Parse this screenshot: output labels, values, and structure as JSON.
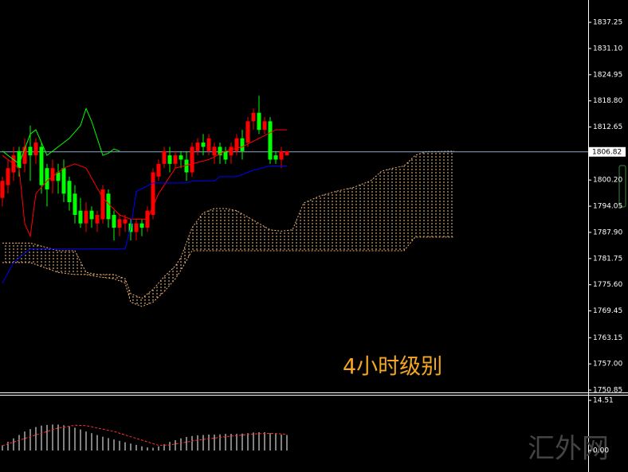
{
  "chart_data": [
    {
      "type": "candlestick",
      "ylim": [
        1750.3,
        1842.5
      ],
      "yticks": [
        1837.25,
        {
          "value": 1831.1,
          "label": "1831.10"
        },
        1824.95,
        {
          "value": 1818.8,
          "label": "1818.80"
        },
        1812.65,
        {
          "value": 1800.2,
          "label": "1800.20"
        },
        1794.05,
        {
          "value": 1787.9,
          "label": "1787.90"
        },
        1781.75,
        {
          "value": 1775.6,
          "label": "1775.60"
        },
        1769.45,
        1763.15,
        {
          "value": 1757,
          "label": "1757.00"
        },
        1750.85
      ],
      "current_price": 1806.82,
      "up_color": "#ff0000",
      "down_color": "#00ff00",
      "open": [
        1796,
        1799,
        1802,
        1807,
        1804,
        1808,
        1806,
        1808,
        1803,
        1800,
        1802,
        1803,
        1800,
        1797,
        1793,
        1790,
        1793,
        1790,
        1791,
        1797,
        1792,
        1789,
        1790,
        1790,
        1788,
        1790,
        1789,
        1792,
        1801,
        1804,
        1806,
        1804,
        1806,
        1805,
        1802,
        1807,
        1809,
        1807,
        1806,
        1808,
        1807,
        1806,
        1807,
        1810,
        1809,
        1814,
        1816,
        1812,
        1814,
        1806,
        1805,
        1806
      ],
      "high": [
        1801,
        1805,
        1808,
        1808,
        1810,
        1813,
        1810,
        1809,
        1804,
        1805,
        1804,
        1805,
        1801,
        1799,
        1796,
        1795,
        1794,
        1793,
        1799,
        1798,
        1793,
        1792,
        1792,
        1791,
        1791,
        1791,
        1794,
        1803,
        1805,
        1808,
        1808,
        1807,
        1807,
        1807,
        1809,
        1810,
        1811,
        1811,
        1809,
        1809,
        1808,
        1809,
        1811,
        1812,
        1815,
        1817,
        1820,
        1815,
        1815,
        1807,
        1808,
        1807
      ],
      "low": [
        1794,
        1797,
        1800,
        1801,
        1802,
        1800,
        1804,
        1797,
        1794,
        1797,
        1797,
        1795,
        1793,
        1790,
        1789,
        1788,
        1789,
        1788,
        1790,
        1789,
        1786,
        1787,
        1788,
        1786,
        1786,
        1787,
        1788,
        1791,
        1800,
        1803,
        1802,
        1803,
        1803,
        1800,
        1801,
        1806,
        1806,
        1806,
        1804,
        1804,
        1804,
        1804,
        1806,
        1805,
        1808,
        1812,
        1811,
        1811,
        1804,
        1804,
        1803,
        1806
      ],
      "close": [
        1800,
        1803,
        1806,
        1803,
        1808,
        1806,
        1809,
        1799,
        1798,
        1803,
        1800,
        1797,
        1795,
        1792,
        1790,
        1793,
        1791,
        1792,
        1798,
        1791,
        1789,
        1791,
        1791,
        1788,
        1790,
        1789,
        1793,
        1802,
        1804,
        1807,
        1804,
        1806,
        1805,
        1802,
        1808,
        1809,
        1808,
        1810,
        1808,
        1806,
        1805,
        1808,
        1810,
        1807,
        1814,
        1816,
        1812,
        1814,
        1805,
        1805,
        1807,
        1807
      ],
      "lines": [
        {
          "color": "#ff0000",
          "x": [
            0,
            3,
            4,
            5,
            6,
            8,
            11,
            13,
            15,
            18,
            21,
            23,
            26,
            28,
            31,
            34,
            37,
            40,
            43,
            46,
            49,
            51
          ],
          "values": [
            1806,
            1803,
            1790,
            1787,
            1797,
            1800,
            1803,
            1804,
            1803,
            1796,
            1792,
            1791,
            1791,
            1797,
            1803,
            1804,
            1805,
            1807,
            1808,
            1810,
            1812,
            1812
          ]
        },
        {
          "color": "#0000ff",
          "x": [
            0,
            2,
            4,
            5,
            22,
            23,
            24,
            27,
            33,
            34,
            38,
            39,
            42,
            45,
            48,
            51
          ],
          "values": [
            1776,
            1780.8,
            1783,
            1784,
            1784,
            1789,
            1797.5,
            1799.5,
            1799.5,
            1800,
            1800,
            1801,
            1801,
            1802.5,
            1803.5,
            1803.5
          ]
        },
        {
          "color": "#00ff00",
          "x": [
            0,
            3,
            5,
            6,
            8,
            10,
            12,
            14,
            15,
            16,
            17,
            18,
            19,
            20,
            21
          ],
          "values": [
            1807,
            1804,
            1811,
            1812,
            1806,
            1808,
            1810,
            1813,
            1817,
            1814,
            1810,
            1806,
            1806.5,
            1807.5,
            1807
          ]
        }
      ],
      "cloud": {
        "color": "#f0b070",
        "x": [
          0,
          5,
          10,
          13,
          15,
          17,
          20,
          22,
          23,
          25,
          27,
          29,
          31,
          32,
          34,
          36,
          38,
          40,
          42,
          44,
          46,
          48,
          50,
          52,
          54,
          57,
          60,
          63,
          66,
          68,
          70,
          72,
          74,
          76,
          78,
          81
        ],
        "span_a": [
          1785.4,
          1785.4,
          1783.6,
          1783.6,
          1778.5,
          1778,
          1778,
          1777,
          1773.5,
          1772.4,
          1774.5,
          1777.5,
          1780,
          1782,
          1789,
          1792.5,
          1793.5,
          1793.5,
          1793,
          1791.5,
          1790,
          1788.5,
          1788.2,
          1788.5,
          1794.8,
          1796.5,
          1797.6,
          1798.5,
          1800,
          1802.3,
          1803,
          1803.5,
          1806,
          1806.9,
          1806.9,
          1807
        ],
        "span_b": [
          1780.8,
          1780.8,
          1778.5,
          1778,
          1778,
          1777.5,
          1777,
          1776,
          1771.5,
          1770.5,
          1771.5,
          1774,
          1777,
          1779,
          1783.6,
          1783.6,
          1783.6,
          1783.6,
          1783.6,
          1783.6,
          1783.6,
          1783.6,
          1783.6,
          1783.6,
          1783.6,
          1783.6,
          1783.6,
          1783.6,
          1783.6,
          1783.6,
          1783.6,
          1783.6,
          1786.8,
          1786.8,
          1786.8,
          1786.8
        ]
      },
      "annotation": "4小时级别",
      "annotation_color": "#f5a623",
      "watermark": "汇外网"
    },
    {
      "type": "macd",
      "ylim": [
        -6.22,
        15.89
      ],
      "yticks": [
        14.51,
        {
          "value": 0,
          "label": "0.00"
        }
      ],
      "histogram": {
        "color": "#ffffff",
        "values": [
          1.5,
          2.5,
          3.5,
          4.5,
          5.5,
          6.2,
          6.8,
          7.2,
          7.4,
          7.5,
          7.5,
          7.3,
          7,
          6.6,
          6.1,
          5.5,
          5,
          4.5,
          4,
          3.6,
          3.2,
          2.8,
          2.4,
          2,
          1.6,
          1.2,
          0.9,
          0.8,
          1.2,
          1.8,
          2.5,
          3,
          3.5,
          3.9,
          4.2,
          4.4,
          4.5,
          4.6,
          4.6,
          4.7,
          4.8,
          4.8,
          4.8,
          4.9,
          5,
          5.2,
          5.3,
          5.3,
          5,
          4.8,
          4.6,
          4.5
        ]
      },
      "signal": {
        "color": "#ff3030",
        "x": [
          0,
          5,
          10,
          13,
          15,
          20,
          25,
          28,
          30,
          35,
          40,
          45,
          48,
          51
        ],
        "values": [
          1.4,
          4,
          6.5,
          7.3,
          7.2,
          5.5,
          3,
          1.5,
          1.6,
          3,
          4,
          4.8,
          5,
          4.7
        ]
      }
    }
  ]
}
